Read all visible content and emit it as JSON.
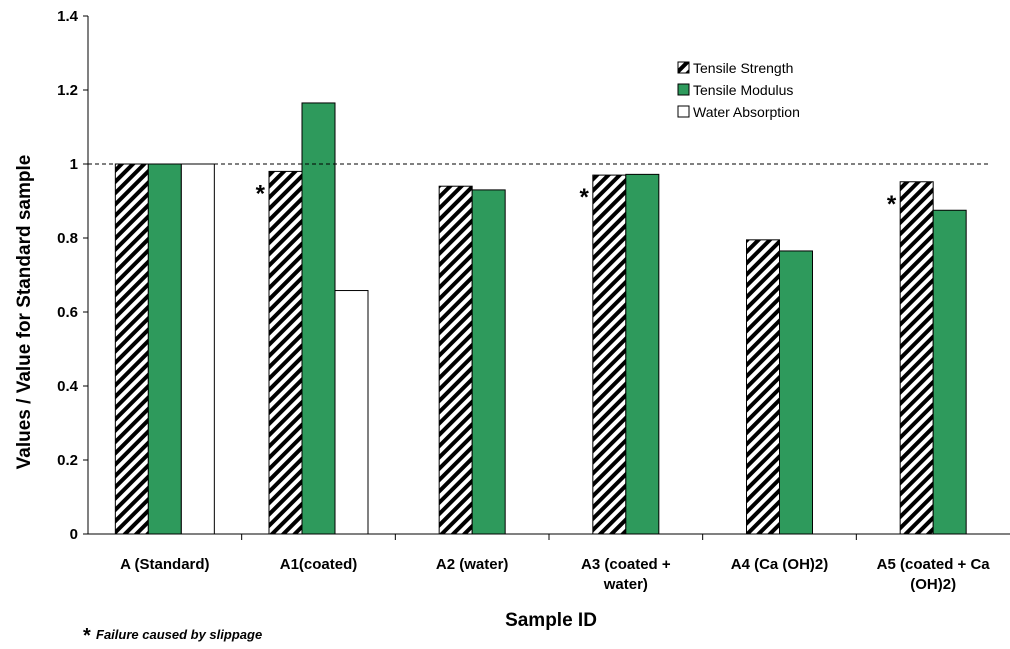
{
  "chart_data": {
    "type": "bar",
    "xlabel": "Sample ID",
    "ylabel": "Values / Value for Standard sample",
    "ylim": [
      0,
      1.4
    ],
    "yticks": [
      "0",
      "0.2",
      "0.4",
      "0.6",
      "0.8",
      "1",
      "1.2",
      "1.4"
    ],
    "categories": [
      [
        "A (Standard)"
      ],
      [
        "A1(coated)"
      ],
      [
        "A2 (water)"
      ],
      [
        "A3 (coated +",
        "water)"
      ],
      [
        "A4 (Ca (OH)2)"
      ],
      [
        "A5 (coated + Ca",
        "(OH)2)"
      ]
    ],
    "series": [
      {
        "name": "Tensile Strength",
        "values": [
          1.0,
          0.98,
          0.94,
          0.97,
          0.795,
          0.952
        ]
      },
      {
        "name": "Tensile Modulus",
        "values": [
          1.0,
          1.165,
          0.93,
          0.972,
          0.765,
          0.875
        ]
      },
      {
        "name": "Water Absorption",
        "values": [
          1.0,
          0.658,
          null,
          null,
          null,
          null
        ]
      }
    ],
    "reference_line": 1.0,
    "slippage_marks": [
      1,
      3,
      5
    ],
    "slippage_symbol": "*",
    "footnote": "Failure caused by slippage",
    "legend_position": "top-right",
    "grid": false
  },
  "colors": {
    "tensile_modulus": "#2e9a5c",
    "water_absorption": "#ffffff",
    "hatch": "#000000"
  }
}
